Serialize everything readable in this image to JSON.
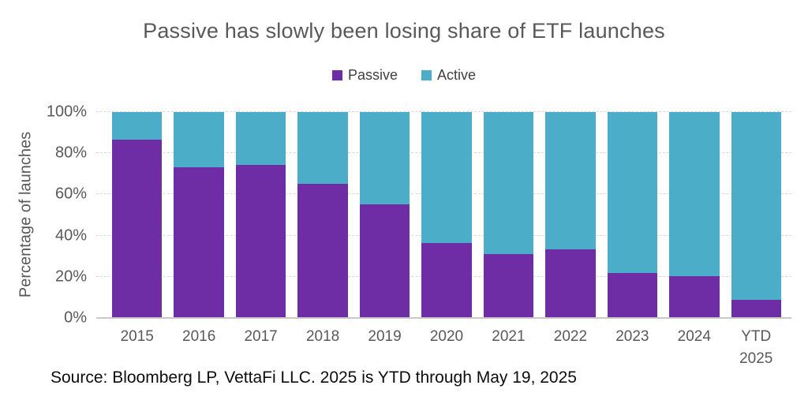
{
  "title": "Passive has slowly been losing share of ETF launches",
  "source": "Source: Bloomberg LP, VettaFi LLC. 2025 is YTD through May 19, 2025",
  "colors": {
    "passive": "#6E2CA5",
    "active": "#4BADC8",
    "title_text": "#595959",
    "axis_text": "#595959",
    "legend_text": "#404040",
    "gridline": "#D9D9D9",
    "axis_line": "#C9C9C9",
    "source_text": "#0D0D0D",
    "background": "#FFFFFF"
  },
  "legend": {
    "items": [
      {
        "label": "Passive",
        "color": "#6E2CA5"
      },
      {
        "label": "Active",
        "color": "#4BADC8"
      }
    ]
  },
  "chart_data": {
    "type": "bar",
    "stacked": true,
    "title": "Passive has slowly been losing share of ETF launches",
    "xlabel": "",
    "ylabel": "Percentage of launches",
    "ylim": [
      0,
      100
    ],
    "ytick_interval": 20,
    "yticks": [
      "0%",
      "20%",
      "40%",
      "60%",
      "80%",
      "100%"
    ],
    "grid": "horizontal-dashed",
    "legend_position": "top",
    "categories": [
      "2015",
      "2016",
      "2017",
      "2018",
      "2019",
      "2020",
      "2021",
      "2022",
      "2023",
      "2024",
      "YTD\n2025"
    ],
    "series": [
      {
        "name": "Passive",
        "color_key": "passive",
        "values": [
          86.5,
          73,
          74.5,
          65,
          55,
          36.5,
          31,
          33.5,
          22,
          20.5,
          9
        ]
      },
      {
        "name": "Active",
        "color_key": "active",
        "values": [
          13.5,
          27,
          25.5,
          35,
          45,
          63.5,
          69,
          66.5,
          78,
          79.5,
          91
        ]
      }
    ]
  }
}
